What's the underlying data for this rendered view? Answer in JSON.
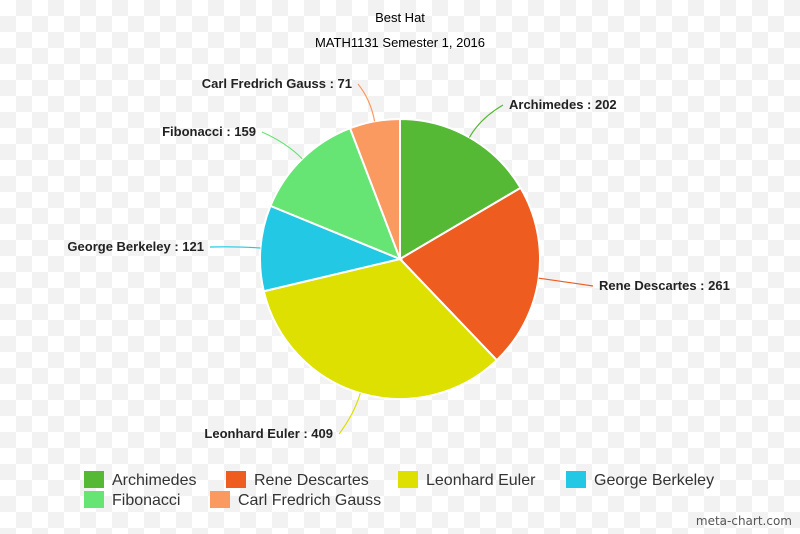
{
  "chart_data": {
    "type": "pie",
    "title": "Best Hat",
    "subtitle": "MATH1131 Semester 1, 2016",
    "categories": [
      "Archimedes",
      "Rene Descartes",
      "Leonhard Euler",
      "George Berkeley",
      "Fibonacci",
      "Carl Fredrich Gauss"
    ],
    "values": [
      202,
      261,
      409,
      121,
      159,
      71
    ],
    "colors": [
      "#56b935",
      "#ef5c1f",
      "#dde000",
      "#23c9e4",
      "#66e574",
      "#fb9a60"
    ],
    "legend_position": "bottom",
    "data_labels": "name : value"
  },
  "watermark": "meta-chart.com"
}
